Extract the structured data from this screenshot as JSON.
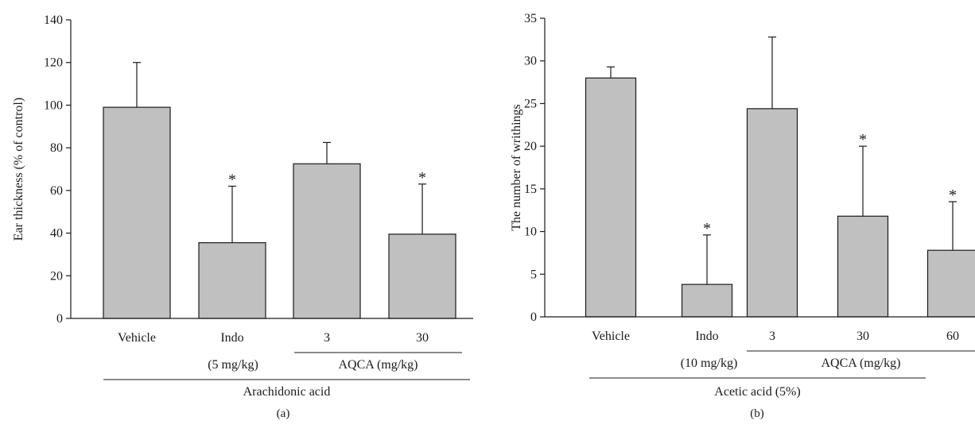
{
  "chart_data": [
    {
      "type": "bar",
      "panel_label": "(a)",
      "ylabel": "Ear thickness (% of control)",
      "ylim": [
        0,
        140
      ],
      "yticks": [
        0,
        20,
        40,
        60,
        80,
        100,
        120,
        140
      ],
      "categories": [
        "Vehicle",
        "Indo",
        "3",
        "30"
      ],
      "values": [
        99,
        35.5,
        72.5,
        39.5
      ],
      "errors": [
        21,
        26.5,
        10,
        23.5
      ],
      "significant": [
        false,
        true,
        false,
        true
      ],
      "significance_mark": "*",
      "subgroups": [
        {
          "label": "(5 mg/kg)",
          "under": [
            "Indo"
          ]
        },
        {
          "label": "AQCA (mg/kg)",
          "under": [
            "3",
            "30"
          ]
        }
      ],
      "group_label": "Arachidonic acid",
      "bar_color": "#c0c0c0"
    },
    {
      "type": "bar",
      "panel_label": "(b)",
      "ylabel": "The number of writhings",
      "ylim": [
        0,
        35
      ],
      "yticks": [
        0,
        5,
        10,
        15,
        20,
        25,
        30,
        35
      ],
      "categories": [
        "Vehicle",
        "Indo",
        "3",
        "30",
        "60"
      ],
      "values": [
        28,
        3.8,
        24.4,
        11.8,
        7.8
      ],
      "errors": [
        1.3,
        5.8,
        8.4,
        8.2,
        5.7
      ],
      "significant": [
        false,
        true,
        false,
        true,
        true
      ],
      "significance_mark": "*",
      "subgroups": [
        {
          "label": "(10 mg/kg)",
          "under": [
            "Indo"
          ]
        },
        {
          "label": "AQCA (mg/kg)",
          "under": [
            "3",
            "30",
            "60"
          ]
        }
      ],
      "group_label": "Acetic acid (5%)",
      "bar_color": "#c0c0c0"
    }
  ]
}
